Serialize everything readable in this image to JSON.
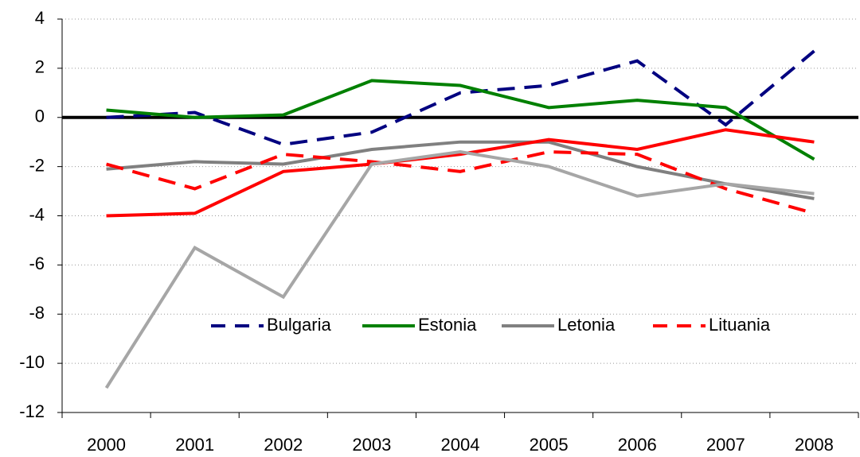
{
  "chart_data": {
    "type": "line",
    "categories": [
      "2000",
      "2001",
      "2002",
      "2003",
      "2004",
      "2005",
      "2006",
      "2007",
      "2008"
    ],
    "series": [
      {
        "name": "Bulgaria",
        "color": "#000080",
        "dash": true,
        "values": [
          0,
          0.2,
          -1.1,
          -0.6,
          1.0,
          1.3,
          2.3,
          -0.3,
          2.7
        ]
      },
      {
        "name": "Estonia",
        "color": "#008000",
        "dash": false,
        "values": [
          0.3,
          0,
          0.1,
          1.5,
          1.3,
          0.4,
          0.7,
          0.4,
          -1.7
        ]
      },
      {
        "name": "Letonia",
        "color": "#808080",
        "dash": false,
        "values": [
          -2.1,
          -1.8,
          -1.9,
          -1.3,
          -1.0,
          -1.0,
          -2.0,
          -2.7,
          -3.3
        ]
      },
      {
        "name": "Lituania",
        "color": "#ff0000",
        "dash": true,
        "values": [
          -1.9,
          -2.9,
          -1.5,
          -1.8,
          -2.2,
          -1.4,
          -1.5,
          -2.9,
          -3.9
        ]
      },
      {
        "color": "#ff0000",
        "dash": false,
        "values": [
          -4.0,
          -3.9,
          -2.2,
          -1.9,
          -1.5,
          -0.9,
          -1.3,
          -0.5,
          -1.0
        ]
      },
      {
        "color": "#a6a6a6",
        "dash": false,
        "values": [
          -11,
          -5.3,
          -7.3,
          -1.9,
          -1.4,
          -2.0,
          -3.2,
          -2.7,
          -3.1
        ]
      }
    ],
    "ylim": [
      -12,
      4
    ],
    "yticks": [
      -12,
      -10,
      -8,
      -6,
      -4,
      -2,
      0,
      2,
      4
    ],
    "grid": true
  }
}
